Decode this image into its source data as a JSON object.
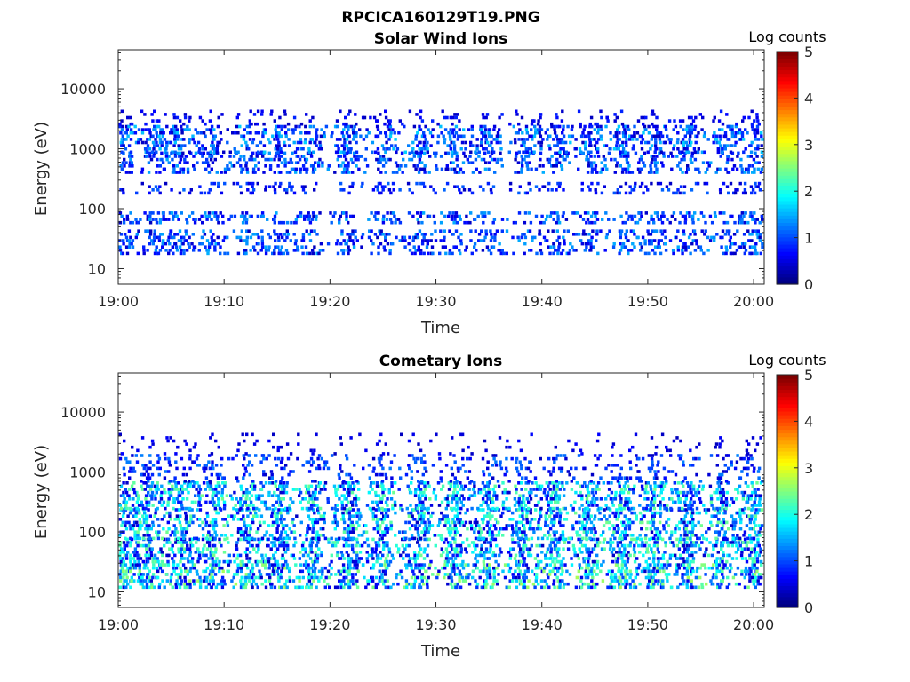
{
  "figure": {
    "title": "RPCICA160129T19.PNG"
  },
  "chart_data": [
    {
      "type": "heatmap",
      "title": "Solar Wind Ions",
      "xlabel": "Time",
      "ylabel": "Energy (eV)",
      "y_scale": "log",
      "ylim": [
        5.5,
        45000
      ],
      "xlim": [
        "19:00",
        "20:01"
      ],
      "x_ticks": [
        "19:00",
        "19:10",
        "19:20",
        "19:30",
        "19:40",
        "19:50",
        "20:00"
      ],
      "y_ticks": [
        "10",
        "100",
        "1000",
        "10000"
      ],
      "colorbar": {
        "label": "Log counts",
        "range": [
          0,
          5
        ],
        "ticks": [
          "0",
          "1",
          "2",
          "3",
          "4",
          "5"
        ],
        "colormap": "jet"
      },
      "sweep_centers_min": [
        0.4,
        3.5,
        5.8,
        8.7,
        12.0,
        15.0,
        18.0,
        21.5,
        25.0,
        28.5,
        31.6,
        34.8,
        38.3,
        41.3,
        44.6,
        47.8,
        50.5,
        53.8,
        57.3,
        60.0
      ],
      "bands_eV": [
        {
          "low": 18,
          "high": 45,
          "intensity": 0.7
        },
        {
          "low": 60,
          "high": 90,
          "intensity": 0.7
        },
        {
          "low": 180,
          "high": 280,
          "intensity": 0.5
        },
        {
          "low": 400,
          "high": 900,
          "intensity": 0.7
        },
        {
          "low": 900,
          "high": 2500,
          "intensity": 0.8
        },
        {
          "low": 2500,
          "high": 4500,
          "intensity": 0.3
        }
      ]
    },
    {
      "type": "heatmap",
      "title": "Cometary Ions",
      "xlabel": "Time",
      "ylabel": "Energy (eV)",
      "y_scale": "log",
      "ylim": [
        5.5,
        45000
      ],
      "xlim": [
        "19:00",
        "20:01"
      ],
      "x_ticks": [
        "19:00",
        "19:10",
        "19:20",
        "19:30",
        "19:40",
        "19:50",
        "20:00"
      ],
      "y_ticks": [
        "10",
        "100",
        "1000",
        "10000"
      ],
      "colorbar": {
        "label": "Log counts",
        "range": [
          0,
          5
        ],
        "ticks": [
          "0",
          "1",
          "2",
          "3",
          "4",
          "5"
        ],
        "colormap": "jet"
      },
      "sweep_centers_min": [
        0.4,
        2.8,
        5.8,
        8.8,
        12.0,
        15.0,
        18.2,
        21.5,
        24.8,
        28.2,
        31.6,
        34.7,
        38.0,
        41.0,
        44.3,
        47.4,
        50.5,
        53.6,
        57.0,
        60.0
      ],
      "bands_eV": [
        {
          "low": 12,
          "high": 30,
          "intensity": 1.0
        },
        {
          "low": 30,
          "high": 80,
          "intensity": 0.9
        },
        {
          "low": 80,
          "high": 250,
          "intensity": 0.9
        },
        {
          "low": 250,
          "high": 700,
          "intensity": 0.9
        },
        {
          "low": 700,
          "high": 2000,
          "intensity": 0.4
        },
        {
          "low": 2000,
          "high": 4500,
          "intensity": 0.15
        }
      ]
    }
  ]
}
